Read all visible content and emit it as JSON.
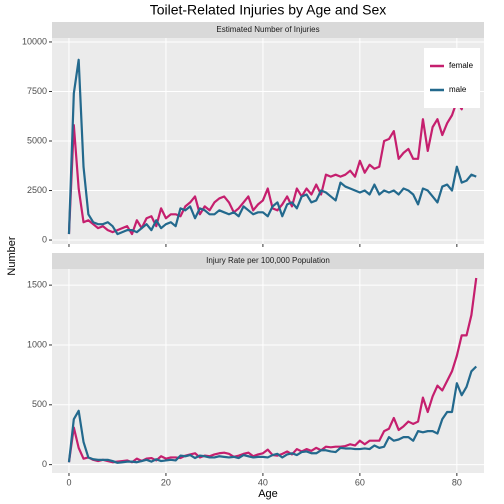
{
  "title": "Toilet-Related Injuries by Age and Sex",
  "x_label": "Age",
  "y_label": "Number",
  "chart_data": [
    {
      "type": "line",
      "title": "Estimated Number of Injuries",
      "x": [
        0,
        1,
        2,
        3,
        4,
        5,
        6,
        7,
        8,
        9,
        10,
        11,
        12,
        13,
        14,
        15,
        16,
        17,
        18,
        19,
        20,
        21,
        22,
        23,
        24,
        25,
        26,
        27,
        28,
        29,
        30,
        31,
        32,
        33,
        34,
        35,
        36,
        37,
        38,
        39,
        40,
        41,
        42,
        43,
        44,
        45,
        46,
        47,
        48,
        49,
        50,
        51,
        52,
        53,
        54,
        55,
        56,
        57,
        58,
        59,
        60,
        61,
        62,
        63,
        64,
        65,
        66,
        67,
        68,
        69,
        70,
        71,
        72,
        73,
        74,
        75,
        76,
        77,
        78,
        79,
        80,
        81,
        82,
        83,
        84
      ],
      "series": [
        {
          "name": "female",
          "color": "#c51f6e",
          "values": [
            300,
            5800,
            2600,
            900,
            1000,
            800,
            600,
            700,
            500,
            400,
            500,
            600,
            700,
            300,
            1000,
            600,
            1100,
            1200,
            700,
            1600,
            1100,
            1300,
            1300,
            1200,
            1700,
            1900,
            2200,
            1300,
            1700,
            1500,
            1900,
            2100,
            2200,
            1900,
            1400,
            1600,
            1900,
            2200,
            1500,
            1800,
            2000,
            2600,
            1600,
            1500,
            1800,
            2200,
            1700,
            2600,
            2200,
            2600,
            2300,
            2800,
            2300,
            3300,
            3200,
            3300,
            3200,
            3300,
            3500,
            3200,
            4000,
            3400,
            3800,
            3600,
            3700,
            5000,
            5100,
            5500,
            4100,
            4400,
            4600,
            4100,
            4100,
            6100,
            4500,
            5700,
            6100,
            5300,
            5900,
            6300,
            7000,
            6600,
            7800,
            8400,
            8800
          ]
        },
        {
          "name": "male",
          "color": "#23698d",
          "values": [
            300,
            7400,
            9100,
            3700,
            1300,
            900,
            800,
            800,
            900,
            700,
            300,
            400,
            500,
            500,
            400,
            600,
            800,
            500,
            1000,
            600,
            800,
            900,
            700,
            1600,
            1500,
            1700,
            1100,
            1600,
            1500,
            1300,
            1300,
            1500,
            1400,
            1300,
            1400,
            1200,
            1700,
            1500,
            1300,
            1400,
            1400,
            1200,
            1700,
            1900,
            1200,
            1800,
            1900,
            1600,
            2200,
            2300,
            1900,
            2000,
            2500,
            2400,
            2200,
            2000,
            2900,
            2700,
            2600,
            2500,
            2400,
            2500,
            2300,
            2800,
            2300,
            2500,
            2400,
            2500,
            2300,
            2600,
            2500,
            2300,
            1800,
            2600,
            2500,
            2200,
            1900,
            2700,
            2800,
            2500,
            3700,
            2900,
            3000,
            3300,
            3200
          ]
        }
      ],
      "xlim": [
        -3.5,
        85.6
      ],
      "xticks": [
        0,
        20,
        40,
        60,
        80
      ],
      "ylim": [
        -200,
        10200
      ],
      "yticks": [
        0,
        2500,
        5000,
        7500,
        10000
      ],
      "grid": true,
      "legend": "top-right"
    },
    {
      "type": "line",
      "title": "Injury Rate per 100,000 Population",
      "x": [
        0,
        1,
        2,
        3,
        4,
        5,
        6,
        7,
        8,
        9,
        10,
        11,
        12,
        13,
        14,
        15,
        16,
        17,
        18,
        19,
        20,
        21,
        22,
        23,
        24,
        25,
        26,
        27,
        28,
        29,
        30,
        31,
        32,
        33,
        34,
        35,
        36,
        37,
        38,
        39,
        40,
        41,
        42,
        43,
        44,
        45,
        46,
        47,
        48,
        49,
        50,
        51,
        52,
        53,
        54,
        55,
        56,
        57,
        58,
        59,
        60,
        61,
        62,
        63,
        64,
        65,
        66,
        67,
        68,
        69,
        70,
        71,
        72,
        73,
        74,
        75,
        76,
        77,
        78,
        79,
        80,
        81,
        82,
        83,
        84
      ],
      "series": [
        {
          "name": "female",
          "color": "#c51f6e",
          "values": [
            20,
            310,
            140,
            50,
            60,
            40,
            30,
            40,
            30,
            20,
            25,
            30,
            35,
            20,
            50,
            30,
            50,
            55,
            35,
            70,
            50,
            60,
            60,
            55,
            75,
            85,
            95,
            60,
            75,
            70,
            85,
            95,
            100,
            90,
            65,
            75,
            90,
            100,
            70,
            85,
            95,
            125,
            80,
            75,
            90,
            110,
            85,
            130,
            110,
            130,
            115,
            140,
            120,
            150,
            145,
            150,
            150,
            155,
            170,
            160,
            200,
            170,
            200,
            200,
            200,
            280,
            300,
            390,
            290,
            320,
            360,
            340,
            360,
            560,
            440,
            570,
            660,
            620,
            700,
            780,
            910,
            1080,
            1080,
            1250,
            1560
          ]
        },
        {
          "name": "male",
          "color": "#23698d",
          "values": [
            20,
            380,
            450,
            190,
            60,
            45,
            40,
            40,
            40,
            30,
            15,
            20,
            25,
            25,
            20,
            30,
            40,
            25,
            45,
            30,
            35,
            40,
            35,
            75,
            70,
            80,
            55,
            75,
            70,
            60,
            60,
            70,
            65,
            60,
            65,
            55,
            80,
            70,
            60,
            65,
            65,
            60,
            80,
            90,
            60,
            85,
            95,
            80,
            105,
            110,
            95,
            95,
            120,
            120,
            110,
            105,
            140,
            135,
            135,
            130,
            130,
            135,
            130,
            160,
            140,
            150,
            230,
            200,
            210,
            230,
            230,
            200,
            280,
            270,
            280,
            280,
            260,
            380,
            440,
            440,
            680,
            580,
            650,
            780,
            820
          ]
        }
      ],
      "xlim": [
        -3.5,
        85.6
      ],
      "xticks": [
        0,
        20,
        40,
        60,
        80
      ],
      "ylim": [
        -70,
        1635
      ],
      "yticks": [
        0,
        500,
        1000,
        1500
      ],
      "grid": true
    }
  ]
}
